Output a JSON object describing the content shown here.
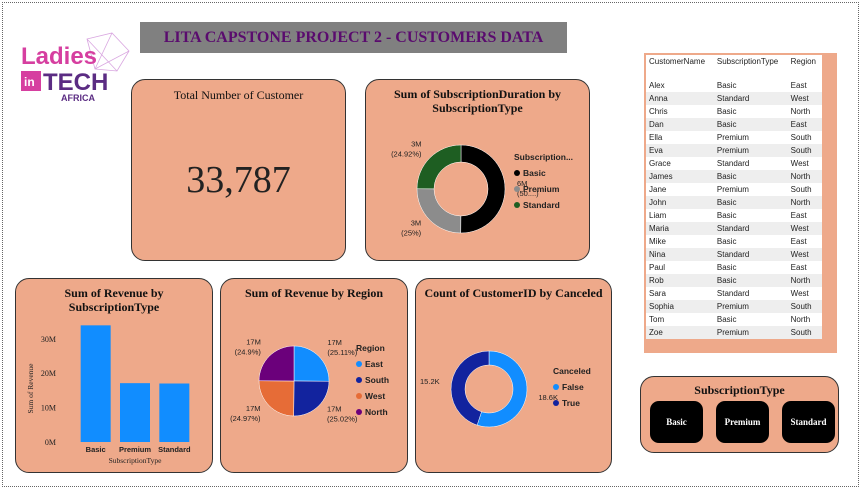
{
  "header": {
    "title": "LITA CAPSTONE PROJECT 2 - CUSTOMERS DATA"
  },
  "logo": {
    "top": "Ladies",
    "badge": "in",
    "main": "TECH",
    "sub": "AFRICA"
  },
  "card": {
    "title": "Total Number of Customer",
    "value": "33,787"
  },
  "chart_data": [
    {
      "type": "donut",
      "title": "Sum of SubscriptionDuration by SubscriptionType",
      "legend_title": "Subscription...",
      "categories": [
        "Basic",
        "Premium",
        "Standard"
      ],
      "values": [
        6010000,
        3000000,
        2990000
      ],
      "value_labels": [
        "6M",
        "3M",
        "3M"
      ],
      "percent_labels": [
        "(50....)",
        "(25%)",
        "(24.92%)"
      ],
      "colors": [
        "#000000",
        "#8c8c8c",
        "#1e5e22"
      ]
    },
    {
      "type": "bar",
      "title": "Sum of Revenue by SubscriptionType",
      "xlabel": "SubscriptionType",
      "ylabel": "Sum of Revenue",
      "categories": [
        "Basic",
        "Premium",
        "Standard"
      ],
      "values": [
        33900000,
        17100000,
        17000000
      ],
      "color": "#118dff",
      "ylim": [
        0,
        34000000
      ],
      "yticks": [
        {
          "value": 0,
          "label": "0M"
        },
        {
          "value": 10000000,
          "label": "10M"
        },
        {
          "value": 20000000,
          "label": "20M"
        },
        {
          "value": 30000000,
          "label": "30M"
        }
      ]
    },
    {
      "type": "pie",
      "title": "Sum of Revenue by Region",
      "legend_title": "Region",
      "categories": [
        "East",
        "South",
        "West",
        "North"
      ],
      "values": [
        17075000,
        17015000,
        16980000,
        16930000
      ],
      "value_labels": [
        "17M",
        "17M",
        "17M",
        "17M"
      ],
      "percent_labels": [
        "(25.11%)",
        "(25.02%)",
        "(24.97%)",
        "(24.9%)"
      ],
      "colors": [
        "#118dff",
        "#12239e",
        "#e66c37",
        "#6b007b"
      ]
    },
    {
      "type": "donut",
      "title": "Count of CustomerID by Canceled",
      "legend_title": "Canceled",
      "categories": [
        "False",
        "True"
      ],
      "values": [
        18600,
        15187
      ],
      "value_labels": [
        "18.6K",
        "15.2K"
      ],
      "colors": [
        "#118dff",
        "#12239e"
      ]
    }
  ],
  "table": {
    "columns": [
      "CustomerName",
      "SubscriptionType",
      "Region"
    ],
    "rows": [
      [
        "Alex",
        "Basic",
        "East"
      ],
      [
        "Anna",
        "Standard",
        "West"
      ],
      [
        "Chris",
        "Basic",
        "North"
      ],
      [
        "Dan",
        "Basic",
        "East"
      ],
      [
        "Ella",
        "Premium",
        "South"
      ],
      [
        "Eva",
        "Premium",
        "South"
      ],
      [
        "Grace",
        "Standard",
        "West"
      ],
      [
        "James",
        "Basic",
        "North"
      ],
      [
        "Jane",
        "Premium",
        "South"
      ],
      [
        "John",
        "Basic",
        "North"
      ],
      [
        "Liam",
        "Basic",
        "East"
      ],
      [
        "Maria",
        "Standard",
        "West"
      ],
      [
        "Mike",
        "Basic",
        "East"
      ],
      [
        "Nina",
        "Standard",
        "West"
      ],
      [
        "Paul",
        "Basic",
        "East"
      ],
      [
        "Rob",
        "Basic",
        "North"
      ],
      [
        "Sara",
        "Standard",
        "West"
      ],
      [
        "Sophia",
        "Premium",
        "South"
      ],
      [
        "Tom",
        "Basic",
        "North"
      ],
      [
        "Zoe",
        "Premium",
        "South"
      ]
    ]
  },
  "slicer": {
    "title": "SubscriptionType",
    "options": [
      "Basic",
      "Premium",
      "Standard"
    ]
  }
}
